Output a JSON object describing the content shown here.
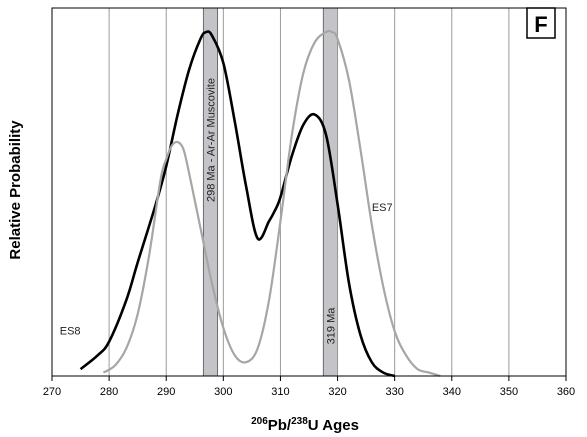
{
  "chart_data": {
    "type": "line",
    "panel_label": "F",
    "xlabel_parts": {
      "sup1": "206",
      "base1": "Pb/",
      "sup2": "238",
      "base2": "U Ages"
    },
    "ylabel": "Relative Probability",
    "xlim": [
      270,
      360
    ],
    "ylim": [
      0,
      1
    ],
    "x_ticks": [
      270,
      280,
      290,
      300,
      310,
      320,
      330,
      340,
      350,
      360
    ],
    "vertical_gridlines": true,
    "y_ticks_shown": false,
    "bands": [
      {
        "label": "298 Ma - Ar-Ar Muscovite",
        "x_from": 296.5,
        "x_to": 299.0,
        "color": "#c4c4c8"
      },
      {
        "label": "319 Ma",
        "x_from": 317.5,
        "x_to": 320.0,
        "color": "#c4c4c8"
      }
    ],
    "series": [
      {
        "name": "ES8",
        "color": "#000000",
        "x": [
          275,
          278,
          280,
          283,
          285,
          288,
          290,
          292,
          294,
          296,
          297,
          298,
          300,
          302,
          304,
          306,
          308,
          309,
          310,
          312,
          314,
          316,
          318,
          320,
          322,
          324,
          326,
          328,
          330
        ],
        "y": [
          0.02,
          0.06,
          0.1,
          0.22,
          0.33,
          0.49,
          0.61,
          0.76,
          0.89,
          0.98,
          1.0,
          0.99,
          0.91,
          0.74,
          0.55,
          0.4,
          0.45,
          0.48,
          0.52,
          0.64,
          0.73,
          0.76,
          0.7,
          0.5,
          0.27,
          0.12,
          0.04,
          0.01,
          0.0
        ]
      },
      {
        "name": "ES7",
        "color": "#a6a6a6",
        "x": [
          279,
          281,
          283,
          285,
          287,
          289,
          290,
          291,
          292,
          293,
          294,
          296,
          298,
          300,
          302,
          304,
          306,
          308,
          310,
          312,
          314,
          316,
          318,
          319,
          320,
          322,
          324,
          326,
          328,
          330,
          332,
          334,
          336,
          338
        ],
        "y": [
          0.01,
          0.03,
          0.08,
          0.18,
          0.35,
          0.57,
          0.63,
          0.67,
          0.68,
          0.66,
          0.59,
          0.43,
          0.27,
          0.14,
          0.06,
          0.04,
          0.08,
          0.22,
          0.45,
          0.7,
          0.88,
          0.97,
          1.0,
          1.0,
          0.98,
          0.86,
          0.66,
          0.44,
          0.26,
          0.13,
          0.06,
          0.02,
          0.01,
          0.0
        ]
      }
    ],
    "series_labels": [
      {
        "text": "ES8",
        "series": "ES8"
      },
      {
        "text": "ES7",
        "series": "ES7"
      }
    ]
  }
}
